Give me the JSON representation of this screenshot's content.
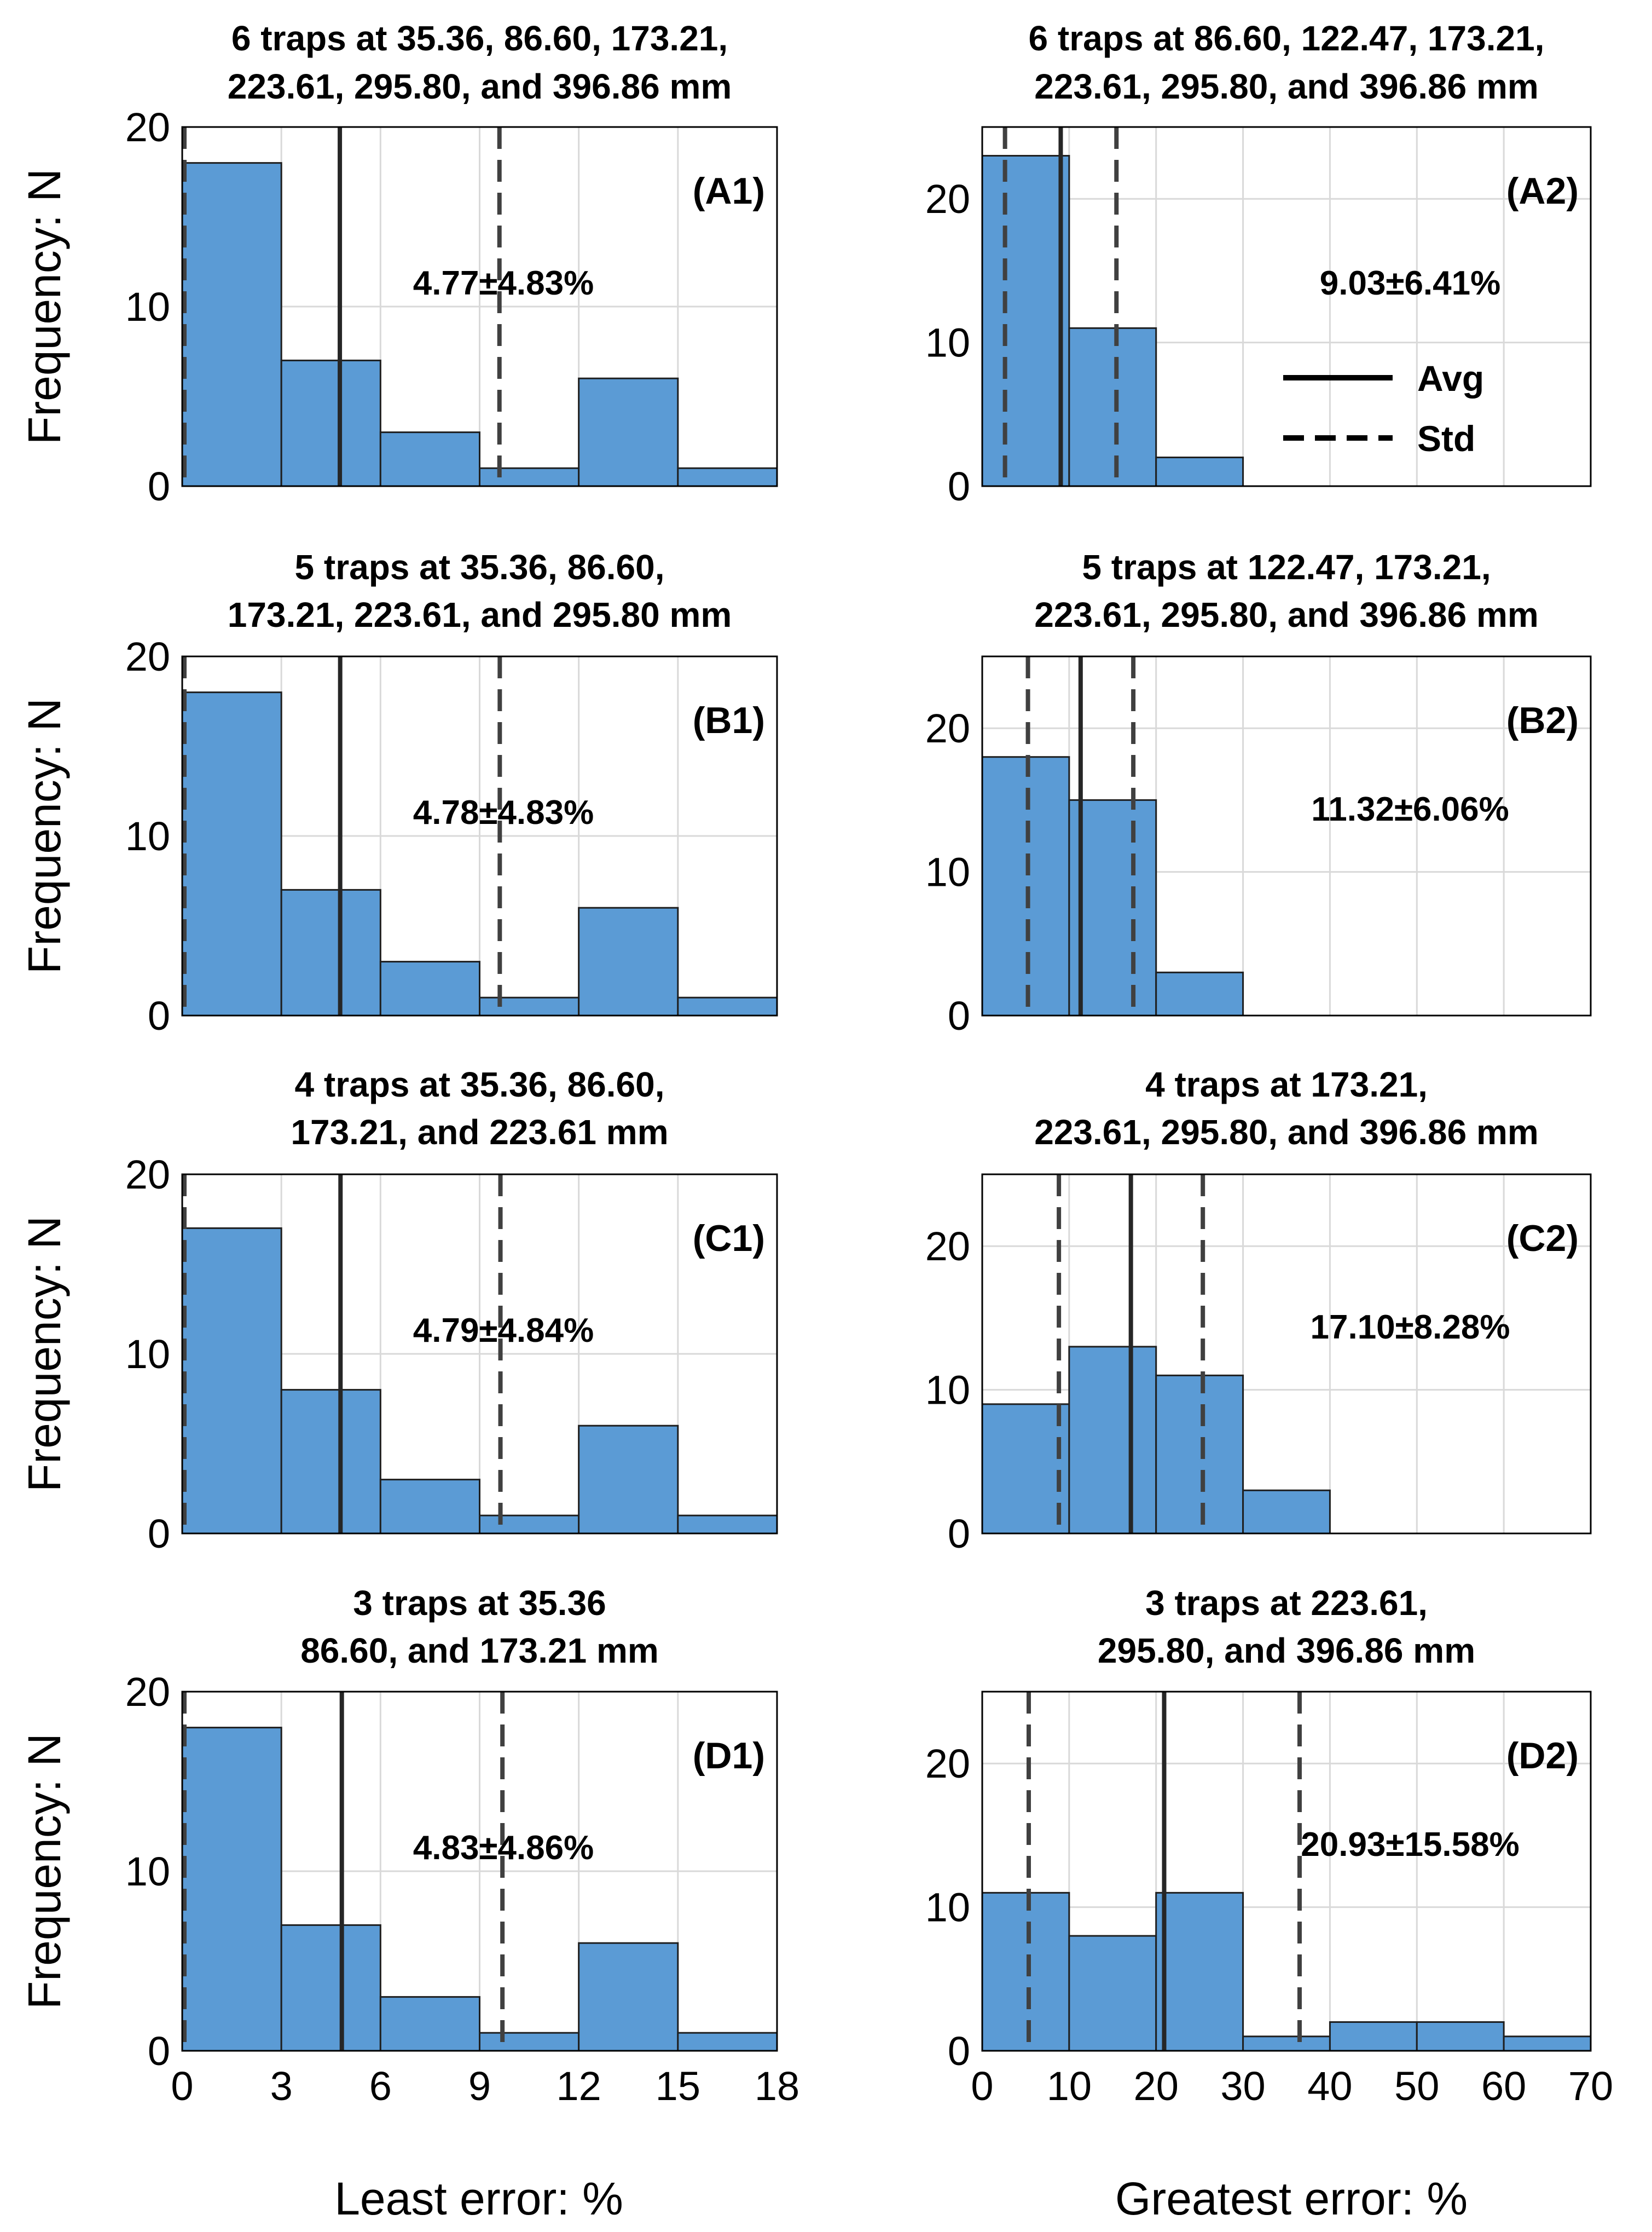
{
  "figure": {
    "left_xlabel": "Least error: %",
    "right_xlabel": "Greatest error: %",
    "ylabel": "Frequency: N",
    "legend": {
      "avg": "Avg",
      "std": "Std"
    }
  },
  "chart_data": [
    {
      "type": "bar",
      "id": "A1",
      "title_lines": [
        "6 traps at 35.36, 86.60, 173.21,",
        "223.61, 295.80, and 396.86 mm"
      ],
      "panel_label": "(A1)",
      "annotation": "4.77±4.83%",
      "xlabel": "Least error: %",
      "ylabel": "Frequency: N",
      "xlim": [
        0,
        18
      ],
      "ylim": [
        0,
        20
      ],
      "xticks": [
        "0",
        "3",
        "6",
        "9",
        "12",
        "15",
        "18"
      ],
      "yticks": [
        "0",
        "10",
        "20"
      ],
      "bin_edges": [
        0,
        3,
        6,
        9,
        12,
        15,
        18
      ],
      "values": [
        18,
        7,
        3,
        1,
        6,
        1
      ],
      "avg": 4.77,
      "std_lines": [
        0,
        9.6
      ]
    },
    {
      "type": "bar",
      "id": "A2",
      "title_lines": [
        "6 traps at 86.60, 122.47, 173.21,",
        "223.61, 295.80, and 396.86 mm"
      ],
      "panel_label": "(A2)",
      "annotation": "9.03±6.41%",
      "xlabel": "Greatest error: %",
      "ylabel": "",
      "xlim": [
        0,
        70
      ],
      "ylim": [
        0,
        25
      ],
      "xticks": [
        "0",
        "10",
        "20",
        "30",
        "40",
        "50",
        "60",
        "70"
      ],
      "yticks": [
        "0",
        "10",
        "20"
      ],
      "bin_edges": [
        0,
        10,
        20,
        30
      ],
      "values": [
        23,
        11,
        2
      ],
      "avg": 9.03,
      "std_lines": [
        2.62,
        15.44
      ],
      "legend": true
    },
    {
      "type": "bar",
      "id": "B1",
      "title_lines": [
        "5 traps at 35.36, 86.60,",
        "173.21, 223.61, and 295.80 mm"
      ],
      "panel_label": "(B1)",
      "annotation": "4.78±4.83%",
      "xlabel": "Least error: %",
      "ylabel": "Frequency: N",
      "xlim": [
        0,
        18
      ],
      "ylim": [
        0,
        20
      ],
      "xticks": [
        "0",
        "3",
        "6",
        "9",
        "12",
        "15",
        "18"
      ],
      "yticks": [
        "0",
        "10",
        "20"
      ],
      "bin_edges": [
        0,
        3,
        6,
        9,
        12,
        15,
        18
      ],
      "values": [
        18,
        7,
        3,
        1,
        6,
        1
      ],
      "avg": 4.78,
      "std_lines": [
        0,
        9.61
      ]
    },
    {
      "type": "bar",
      "id": "B2",
      "title_lines": [
        "5 traps at 122.47, 173.21,",
        "223.61, 295.80, and 396.86 mm"
      ],
      "panel_label": "(B2)",
      "annotation": "11.32±6.06%",
      "xlabel": "Greatest error: %",
      "ylabel": "",
      "xlim": [
        0,
        70
      ],
      "ylim": [
        0,
        25
      ],
      "xticks": [
        "0",
        "10",
        "20",
        "30",
        "40",
        "50",
        "60",
        "70"
      ],
      "yticks": [
        "0",
        "10",
        "20"
      ],
      "bin_edges": [
        0,
        10,
        20,
        30
      ],
      "values": [
        18,
        15,
        3
      ],
      "avg": 11.32,
      "std_lines": [
        5.26,
        17.38
      ]
    },
    {
      "type": "bar",
      "id": "C1",
      "title_lines": [
        "4 traps at 35.36, 86.60,",
        "173.21, and 223.61 mm"
      ],
      "panel_label": "(C1)",
      "annotation": "4.79±4.84%",
      "xlabel": "Least error: %",
      "ylabel": "Frequency: N",
      "xlim": [
        0,
        18
      ],
      "ylim": [
        0,
        20
      ],
      "xticks": [
        "0",
        "3",
        "6",
        "9",
        "12",
        "15",
        "18"
      ],
      "yticks": [
        "0",
        "10",
        "20"
      ],
      "bin_edges": [
        0,
        3,
        6,
        9,
        12,
        15,
        18
      ],
      "values": [
        17,
        8,
        3,
        1,
        6,
        1
      ],
      "avg": 4.79,
      "std_lines": [
        0,
        9.63
      ]
    },
    {
      "type": "bar",
      "id": "C2",
      "title_lines": [
        "4 traps at 173.21,",
        "223.61, 295.80, and 396.86 mm"
      ],
      "panel_label": "(C2)",
      "annotation": "17.10±8.28%",
      "xlabel": "Greatest error: %",
      "ylabel": "",
      "xlim": [
        0,
        70
      ],
      "ylim": [
        0,
        25
      ],
      "xticks": [
        "0",
        "10",
        "20",
        "30",
        "40",
        "50",
        "60",
        "70"
      ],
      "yticks": [
        "0",
        "10",
        "20"
      ],
      "bin_edges": [
        0,
        10,
        20,
        30,
        40
      ],
      "values": [
        9,
        13,
        11,
        3
      ],
      "avg": 17.1,
      "std_lines": [
        8.82,
        25.38
      ]
    },
    {
      "type": "bar",
      "id": "D1",
      "title_lines": [
        "3 traps at 35.36",
        "86.60, and 173.21 mm"
      ],
      "panel_label": "(D1)",
      "annotation": "4.83±4.86%",
      "xlabel": "Least error: %",
      "ylabel": "Frequency: N",
      "xlim": [
        0,
        18
      ],
      "ylim": [
        0,
        20
      ],
      "xticks": [
        "0",
        "3",
        "6",
        "9",
        "12",
        "15",
        "18"
      ],
      "yticks": [
        "0",
        "10",
        "20"
      ],
      "bin_edges": [
        0,
        3,
        6,
        9,
        12,
        15,
        18
      ],
      "values": [
        18,
        7,
        3,
        1,
        6,
        1
      ],
      "avg": 4.83,
      "std_lines": [
        0,
        9.69
      ]
    },
    {
      "type": "bar",
      "id": "D2",
      "title_lines": [
        "3 traps at 223.61,",
        "295.80, and 396.86 mm"
      ],
      "panel_label": "(D2)",
      "annotation": "20.93±15.58%",
      "xlabel": "Greatest error: %",
      "ylabel": "",
      "xlim": [
        0,
        70
      ],
      "ylim": [
        0,
        25
      ],
      "xticks": [
        "0",
        "10",
        "20",
        "30",
        "40",
        "50",
        "60",
        "70"
      ],
      "yticks": [
        "0",
        "10",
        "20"
      ],
      "bin_edges": [
        0,
        10,
        20,
        30,
        40,
        50,
        60,
        70
      ],
      "values": [
        11,
        8,
        11,
        1,
        2,
        2,
        1
      ],
      "avg": 20.93,
      "std_lines": [
        5.35,
        36.51
      ]
    }
  ]
}
